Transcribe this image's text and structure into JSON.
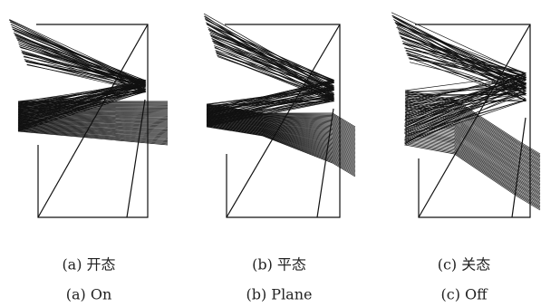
{
  "panels": [
    {
      "caption_zh": "(a) 开态",
      "caption_en": "(a) On"
    },
    {
      "caption_zh": "(b) 平态",
      "caption_en": "(b) Plane"
    },
    {
      "caption_zh": "(c) 关态",
      "caption_en": "(c) Off"
    }
  ]
}
